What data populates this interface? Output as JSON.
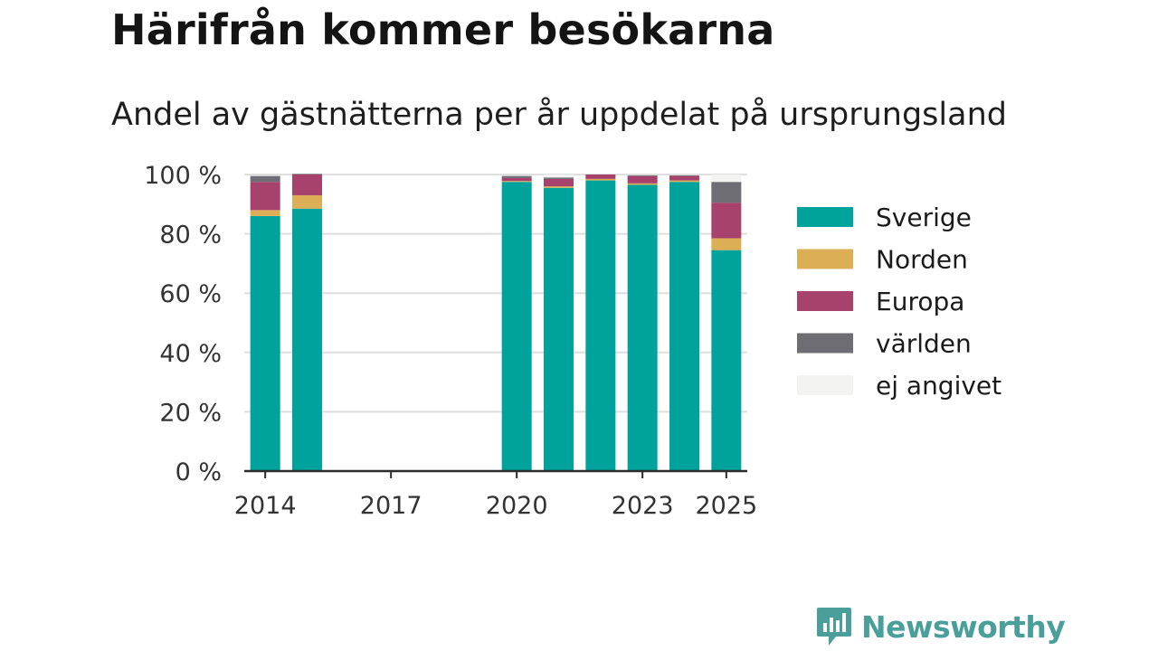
{
  "header": {
    "title": "Härifrån kommer besökarna",
    "subtitle": "Andel av gästnätterna per år uppdelat på ursprungsland"
  },
  "brand": {
    "name": "Newsworthy",
    "icon": "newsworthy-logo-icon",
    "color": "#4a9f9a"
  },
  "chart_data": {
    "type": "bar",
    "stacked": true,
    "categories": [
      "2014",
      "2015",
      "2016",
      "2017",
      "2018",
      "2019",
      "2020",
      "2021",
      "2022",
      "2023",
      "2024",
      "2025"
    ],
    "x_ticks": [
      "2014",
      "2017",
      "2020",
      "2023",
      "2025"
    ],
    "y_ticks": [
      "0 %",
      "20 %",
      "40 %",
      "60 %",
      "80 %",
      "100 %"
    ],
    "ylim": [
      0,
      100
    ],
    "grid": true,
    "legend_position": "right",
    "series": [
      {
        "name": "Sverige",
        "color": "#00a39b",
        "values": [
          86,
          88.5,
          null,
          null,
          null,
          null,
          97.5,
          95.5,
          98,
          96.5,
          97.5,
          74.5
        ]
      },
      {
        "name": "Norden",
        "color": "#dcaf56",
        "values": [
          2,
          4.5,
          null,
          null,
          null,
          null,
          0.3,
          0.5,
          0.5,
          0.5,
          0.5,
          4
        ]
      },
      {
        "name": "Europa",
        "color": "#a6426b",
        "values": [
          9.5,
          7,
          null,
          null,
          null,
          null,
          1,
          2.5,
          1.5,
          2.5,
          1.5,
          12
        ]
      },
      {
        "name": "världen",
        "color": "#6d6d73",
        "values": [
          2,
          0.2,
          null,
          null,
          null,
          null,
          0.7,
          0.5,
          0,
          0.2,
          0.2,
          7
        ]
      },
      {
        "name": "ej angivet",
        "color": "#f3f3f1",
        "values": [
          0,
          0,
          null,
          null,
          null,
          null,
          0,
          1,
          0,
          0,
          0,
          2.5
        ]
      }
    ]
  }
}
